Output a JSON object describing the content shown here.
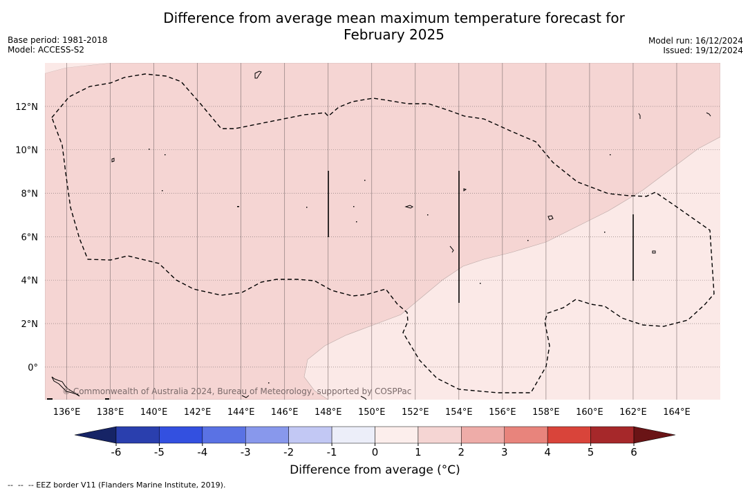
{
  "title_lines": [
    "Difference from average mean maximum temperature forecast for",
    "February 2025"
  ],
  "meta_left": [
    "Base period: 1981-2018",
    "Model: ACCESS-S2"
  ],
  "meta_right": [
    "Model run: 16/12/2024",
    "Issued: 19/12/2024"
  ],
  "map": {
    "lon_range": [
      135,
      166
    ],
    "lat_range": [
      -1.5,
      14
    ],
    "lon_ticks": [
      "136°E",
      "138°E",
      "140°E",
      "142°E",
      "144°E",
      "146°E",
      "148°E",
      "150°E",
      "152°E",
      "154°E",
      "156°E",
      "158°E",
      "160°E",
      "162°E",
      "164°E"
    ],
    "lat_ticks": [
      "12°N",
      "10°N",
      "8°N",
      "6°N",
      "4°N",
      "2°N",
      "0°"
    ],
    "copyright": "© Commonwealth of Australia 2024, Bureau of Meteorology, supported by COSPPac",
    "colors": {
      "anomaly_0_1": "#fbe9e7",
      "anomaly_1_2": "#f5d5d3",
      "coast": "#000000",
      "eez": "#000000"
    }
  },
  "colorbar": {
    "label": "Difference from average (°C)",
    "ticks": [
      "-6",
      "-5",
      "-4",
      "-3",
      "-2",
      "-1",
      "0",
      "1",
      "2",
      "3",
      "4",
      "5",
      "6"
    ],
    "colors": [
      "#162466",
      "#2a3fae",
      "#3350e0",
      "#5a72e4",
      "#8898ec",
      "#c2c8f4",
      "#eceef9",
      "#fceeec",
      "#f5d5d3",
      "#eeaca8",
      "#e8847c",
      "#d9443a",
      "#a6282a",
      "#6a1416"
    ]
  },
  "footer": "--  --  -- EEZ border V11 (Flanders Marine Institute, 2019)."
}
